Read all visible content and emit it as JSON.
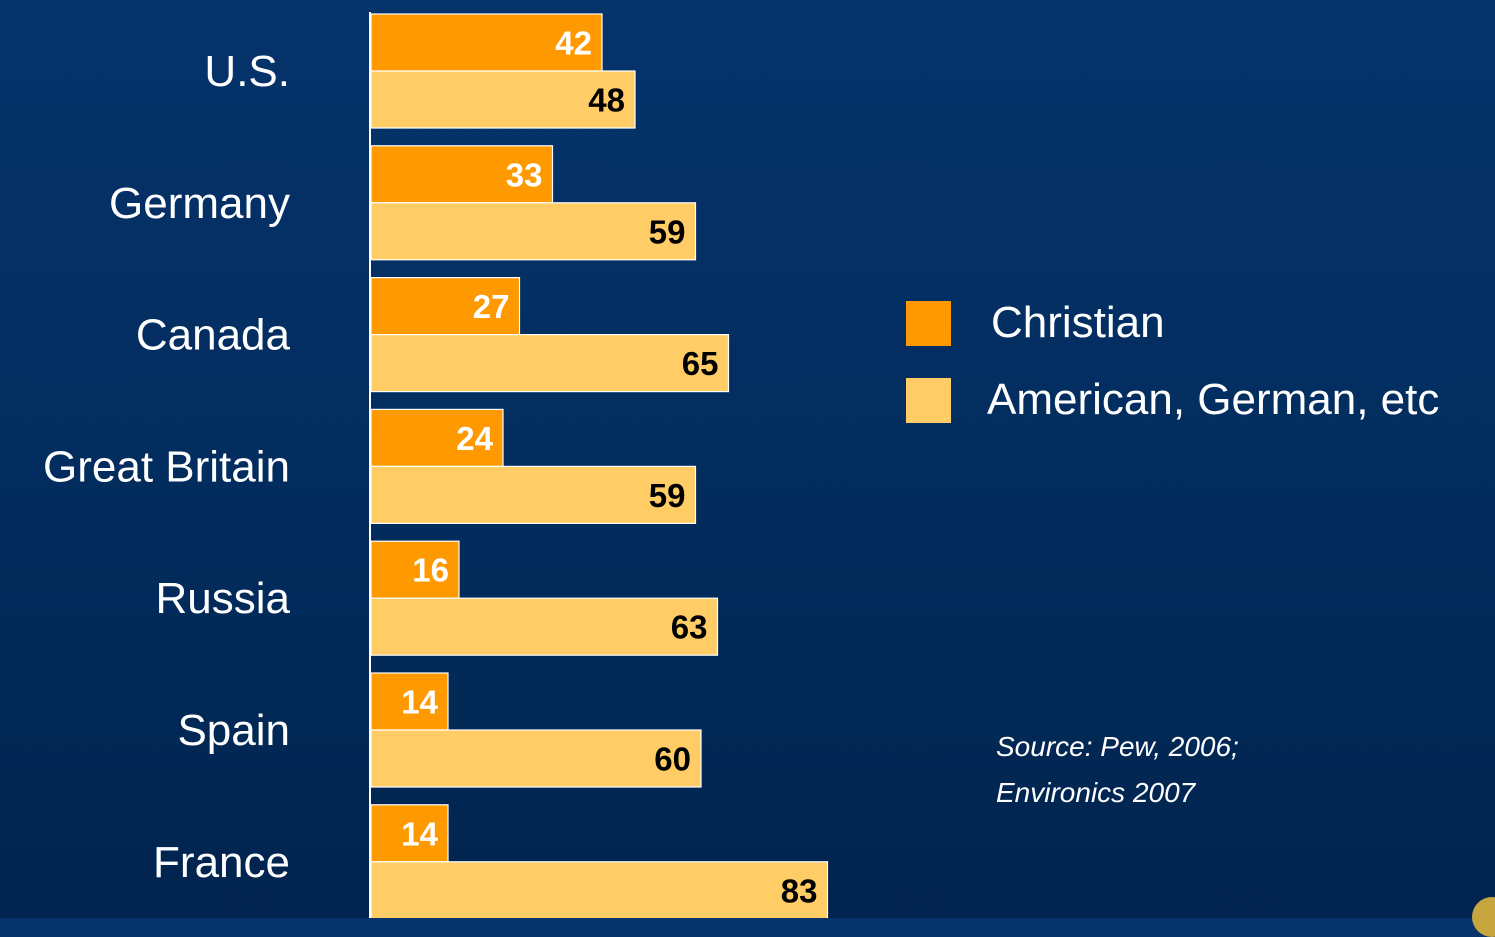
{
  "chart_data": {
    "type": "bar",
    "orientation": "horizontal",
    "categories": [
      "U.S.",
      "Germany",
      "Canada",
      "Great Britain",
      "Russia",
      "Spain",
      "France"
    ],
    "series": [
      {
        "name": "Christian",
        "color": "#ff9900",
        "label_color": "#ffffff",
        "values": [
          42,
          33,
          27,
          24,
          16,
          14,
          14
        ]
      },
      {
        "name": "American, German, etc",
        "color": "#ffcc66",
        "label_color": "#000000",
        "values": [
          48,
          59,
          65,
          59,
          63,
          60,
          83
        ]
      }
    ],
    "xlim": [
      0,
      100
    ],
    "grid": false,
    "legend_position": "right"
  },
  "source": {
    "line1": "Source: Pew, 2006;",
    "line2": "Environics 2007"
  }
}
